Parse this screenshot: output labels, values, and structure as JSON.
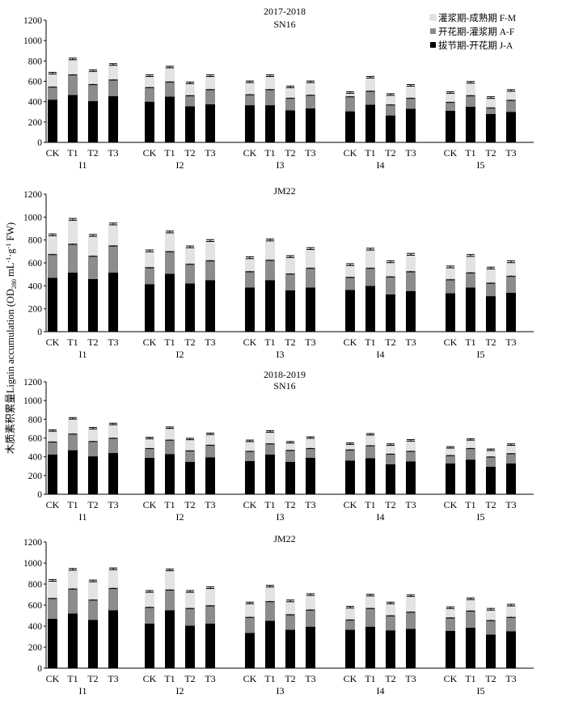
{
  "y_axis_label": "木质素积累量 Lignin accumulation (OD280 mL-1·g-1 FW)",
  "y_axis_label_parts": {
    "cn": "木质素积累量",
    "en": "Lignin accumulation (OD",
    "sub": "280",
    "mid1": " mL",
    "sup1": "-1",
    "mid2": "·g",
    "sup2": "-1",
    "end": " FW)"
  },
  "legend": [
    {
      "label": "灌浆期-成熟期 F-M",
      "color": "#e3e3e3"
    },
    {
      "label": "开花期-灌浆期 A-F",
      "color": "#8c8c8c"
    },
    {
      "label": "拔节期-开花期 J-A",
      "color": "#000000"
    }
  ],
  "chart_data": [
    {
      "type": "bar",
      "title": "2017-2018",
      "subtitle": "SN16",
      "ylim": [
        0,
        1200
      ],
      "yticks": [
        0,
        200,
        400,
        600,
        800,
        1000,
        1200
      ],
      "groups": [
        "I1",
        "I2",
        "I3",
        "I4",
        "I5"
      ],
      "categories": [
        "CK",
        "T1",
        "T2",
        "T3"
      ],
      "series": [
        {
          "name": "拔节期-开花期 J-A",
          "values": [
            [
              420,
              465,
              405,
              455
            ],
            [
              400,
              450,
              355,
              375
            ],
            [
              365,
              365,
              315,
              335
            ],
            [
              305,
              370,
              265,
              330
            ],
            [
              310,
              350,
              280,
              300
            ]
          ]
        },
        {
          "name": "开花期-灌浆期 A-F",
          "values": [
            [
              130,
              205,
              170,
              165
            ],
            [
              145,
              150,
              110,
              150
            ],
            [
              110,
              160,
              125,
              135
            ],
            [
              150,
              140,
              110,
              110
            ],
            [
              90,
              115,
              65,
              120
            ]
          ]
        },
        {
          "name": "灌浆期-成熟期 F-M",
          "values": [
            [
              130,
              150,
              130,
              145
            ],
            [
              110,
              140,
              120,
              130
            ],
            [
              120,
              130,
              105,
              125
            ],
            [
              35,
              130,
              95,
              120
            ],
            [
              90,
              125,
              95,
              90
            ]
          ]
        }
      ]
    },
    {
      "type": "bar",
      "title": "",
      "subtitle": "JM22",
      "ylim": [
        0,
        1200
      ],
      "yticks": [
        0,
        200,
        400,
        600,
        800,
        1000,
        1200
      ],
      "groups": [
        "I1",
        "I2",
        "I3",
        "I4",
        "I5"
      ],
      "categories": [
        "CK",
        "T1",
        "T2",
        "T3"
      ],
      "series": [
        {
          "name": "拔节期-开花期 J-A",
          "values": [
            [
              470,
              515,
              460,
              515
            ],
            [
              415,
              505,
              420,
              450
            ],
            [
              385,
              450,
              360,
              385
            ],
            [
              365,
              400,
              325,
              355
            ],
            [
              335,
              385,
              310,
              340
            ]
          ]
        },
        {
          "name": "开花期-灌浆期 A-F",
          "values": [
            [
              210,
              255,
              205,
              240
            ],
            [
              150,
              200,
              175,
              175
            ],
            [
              145,
              180,
              150,
              175
            ],
            [
              115,
              160,
              160,
              175
            ],
            [
              125,
              135,
              120,
              150
            ]
          ]
        },
        {
          "name": "灌浆期-成熟期 F-M",
          "values": [
            [
              165,
              210,
              175,
              185
            ],
            [
              140,
              165,
              145,
              170
            ],
            [
              115,
              170,
              145,
              165
            ],
            [
              105,
              160,
              125,
              145
            ],
            [
              105,
              145,
              125,
              120
            ]
          ]
        }
      ]
    },
    {
      "type": "bar",
      "title": "2018-2019",
      "subtitle": "SN16",
      "ylim": [
        0,
        1200
      ],
      "yticks": [
        0,
        200,
        400,
        600,
        800,
        1000,
        1200
      ],
      "groups": [
        "I1",
        "I2",
        "I3",
        "I4",
        "I5"
      ],
      "categories": [
        "CK",
        "T1",
        "T2",
        "T3"
      ],
      "series": [
        {
          "name": "拔节期-开花期 J-A",
          "values": [
            [
              425,
              470,
              405,
              440
            ],
            [
              390,
              430,
              345,
              395
            ],
            [
              355,
              425,
              345,
              390
            ],
            [
              360,
              385,
              320,
              350
            ],
            [
              330,
              370,
              295,
              330
            ]
          ]
        },
        {
          "name": "开花期-灌浆期 A-F",
          "values": [
            [
              140,
              180,
              165,
              165
            ],
            [
              105,
              155,
              125,
              135
            ],
            [
              110,
              120,
              130,
              105
            ],
            [
              120,
              140,
              115,
              115
            ],
            [
              90,
              125,
              110,
              110
            ]
          ]
        },
        {
          "name": "灌浆期-成熟期 F-M",
          "values": [
            [
              115,
              160,
              135,
              145
            ],
            [
              105,
              125,
              120,
              115
            ],
            [
              105,
              125,
              80,
              110
            ],
            [
              60,
              115,
              95,
              110
            ],
            [
              80,
              90,
              70,
              90
            ]
          ]
        }
      ]
    },
    {
      "type": "bar",
      "title": "",
      "subtitle": "JM22",
      "ylim": [
        0,
        1200
      ],
      "yticks": [
        0,
        200,
        400,
        600,
        800,
        1000,
        1200
      ],
      "groups": [
        "I1",
        "I2",
        "I3",
        "I4",
        "I5"
      ],
      "categories": [
        "CK",
        "T1",
        "T2",
        "T3"
      ],
      "series": [
        {
          "name": "拔节期-开花期 J-A",
          "values": [
            [
              470,
              520,
              460,
              550
            ],
            [
              425,
              550,
              405,
              425
            ],
            [
              335,
              450,
              365,
              395
            ],
            [
              365,
              395,
              360,
              375
            ],
            [
              355,
              385,
              320,
              350
            ]
          ]
        },
        {
          "name": "开花期-灌浆期 A-F",
          "values": [
            [
              200,
              240,
              195,
              215
            ],
            [
              160,
              200,
              170,
              175
            ],
            [
              155,
              190,
              150,
              165
            ],
            [
              100,
              180,
              145,
              165
            ],
            [
              130,
              165,
              140,
              140
            ]
          ]
        },
        {
          "name": "灌浆期-成熟期 F-M",
          "values": [
            [
              165,
              180,
              175,
              180
            ],
            [
              145,
              185,
              155,
              165
            ],
            [
              130,
              140,
              125,
              140
            ],
            [
              115,
              120,
              115,
              150
            ],
            [
              90,
              110,
              100,
              110
            ]
          ]
        }
      ]
    }
  ]
}
